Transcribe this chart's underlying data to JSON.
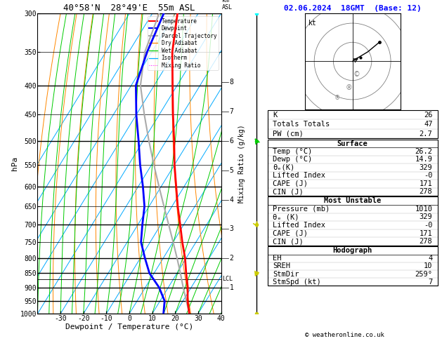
{
  "title_left": "40°58'N  28°49'E  55m ASL",
  "title_right": "02.06.2024  18GMT  (Base: 12)",
  "xlabel": "Dewpoint / Temperature (°C)",
  "ylabel_left": "hPa",
  "ylabel_mid": "Mixing Ratio (g/kg)",
  "ylabel_right": "km\nASL",
  "pressure_levels": [
    300,
    350,
    400,
    450,
    500,
    550,
    600,
    650,
    700,
    750,
    800,
    850,
    900,
    950,
    1000
  ],
  "temp_ticks": [
    -30,
    -20,
    -10,
    0,
    10,
    20,
    30,
    40
  ],
  "isotherm_color": "#00aaff",
  "dry_adiabat_color": "#ff8800",
  "wet_adiabat_color": "#00cc00",
  "mixing_ratio_color": "#ff00ff",
  "temperature_color": "#ff0000",
  "dewpoint_color": "#0000ff",
  "parcel_color": "#aaaaaa",
  "temperature_profile": {
    "pressure": [
      1000,
      950,
      900,
      850,
      800,
      750,
      700,
      650,
      600,
      550,
      500,
      450,
      400,
      350,
      300
    ],
    "temp": [
      26.2,
      22.0,
      18.5,
      14.0,
      9.5,
      4.0,
      -1.5,
      -7.5,
      -13.5,
      -20.0,
      -26.5,
      -34.0,
      -42.0,
      -51.0,
      -59.0
    ]
  },
  "dewpoint_profile": {
    "pressure": [
      1000,
      950,
      900,
      850,
      800,
      750,
      700,
      650,
      600,
      550,
      500,
      450,
      400,
      350,
      300
    ],
    "temp": [
      14.9,
      12.0,
      6.0,
      -2.0,
      -8.0,
      -14.0,
      -18.0,
      -22.0,
      -28.0,
      -35.0,
      -42.0,
      -50.0,
      -58.0,
      -62.0,
      -65.0
    ]
  },
  "parcel_profile": {
    "pressure": [
      1000,
      950,
      900,
      850,
      800,
      750,
      700,
      650,
      600,
      550,
      500,
      450,
      400,
      350,
      300
    ],
    "temp": [
      26.2,
      21.5,
      16.5,
      11.5,
      6.0,
      0.0,
      -6.5,
      -13.5,
      -21.0,
      -29.0,
      -37.5,
      -46.5,
      -56.0,
      -63.0,
      -67.0
    ]
  },
  "lcl_pressure": 870,
  "stats": {
    "K": 26,
    "Totals_Totals": 47,
    "PW_cm": 2.7,
    "Surface_Temp": 26.2,
    "Surface_Dewp": 14.9,
    "Surface_ThetaE": 329,
    "Surface_LiftedIndex": "-0",
    "Surface_CAPE": 171,
    "Surface_CIN": 278,
    "MU_Pressure": 1010,
    "MU_ThetaE": 329,
    "MU_LiftedIndex": "-0",
    "MU_CAPE": 171,
    "MU_CIN": 278,
    "EH": 4,
    "SREH": 10,
    "StmDir": "259°",
    "StmSpd_kt": 7
  }
}
